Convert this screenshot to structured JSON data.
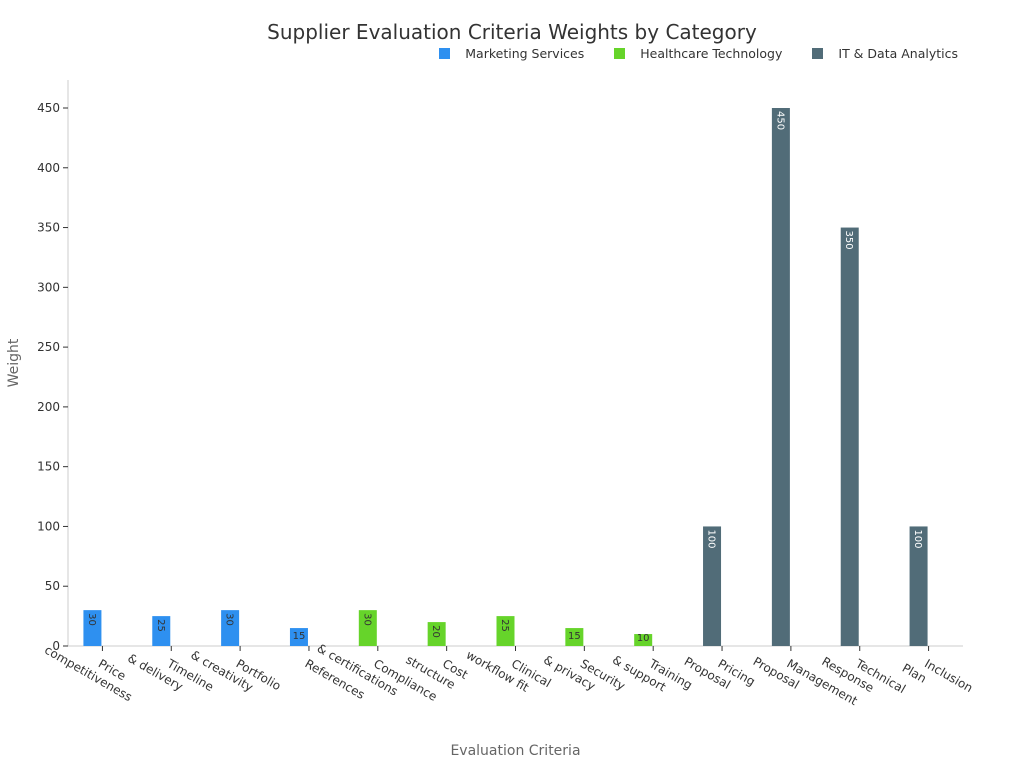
{
  "chart_data": {
    "type": "bar",
    "title": "Supplier Evaluation Criteria Weights by Category",
    "xlabel": "Evaluation Criteria",
    "ylabel": "Weight",
    "ylim": [
      0,
      470
    ],
    "yticks": [
      0,
      50,
      100,
      150,
      200,
      250,
      300,
      350,
      400,
      450
    ],
    "legend_position": "top-right",
    "grid": false,
    "categories": [
      "Price\ncompetitiveness",
      "Timeline\n& delivery",
      "Portfolio\n& creativity",
      "References",
      "Compliance\n& certifications",
      "Cost\nstructure",
      "Clinical\nworkflow fit",
      "Security\n& privacy",
      "Training\n& support",
      "Pricing\nProposal",
      "Management\nProposal",
      "Technical\nResponse",
      "Inclusion\nPlan"
    ],
    "series": [
      {
        "name": "Marketing Services",
        "color": "#2e90f0",
        "values": [
          30,
          25,
          30,
          15,
          null,
          null,
          null,
          null,
          null,
          null,
          null,
          null,
          null
        ]
      },
      {
        "name": "Healthcare Technology",
        "color": "#66d42a",
        "values": [
          null,
          null,
          null,
          null,
          30,
          20,
          25,
          15,
          10,
          null,
          null,
          null,
          null
        ]
      },
      {
        "name": "IT & Data Analytics",
        "color": "#516c78",
        "values": [
          null,
          null,
          null,
          null,
          null,
          null,
          null,
          null,
          null,
          100,
          450,
          350,
          100
        ]
      }
    ]
  }
}
